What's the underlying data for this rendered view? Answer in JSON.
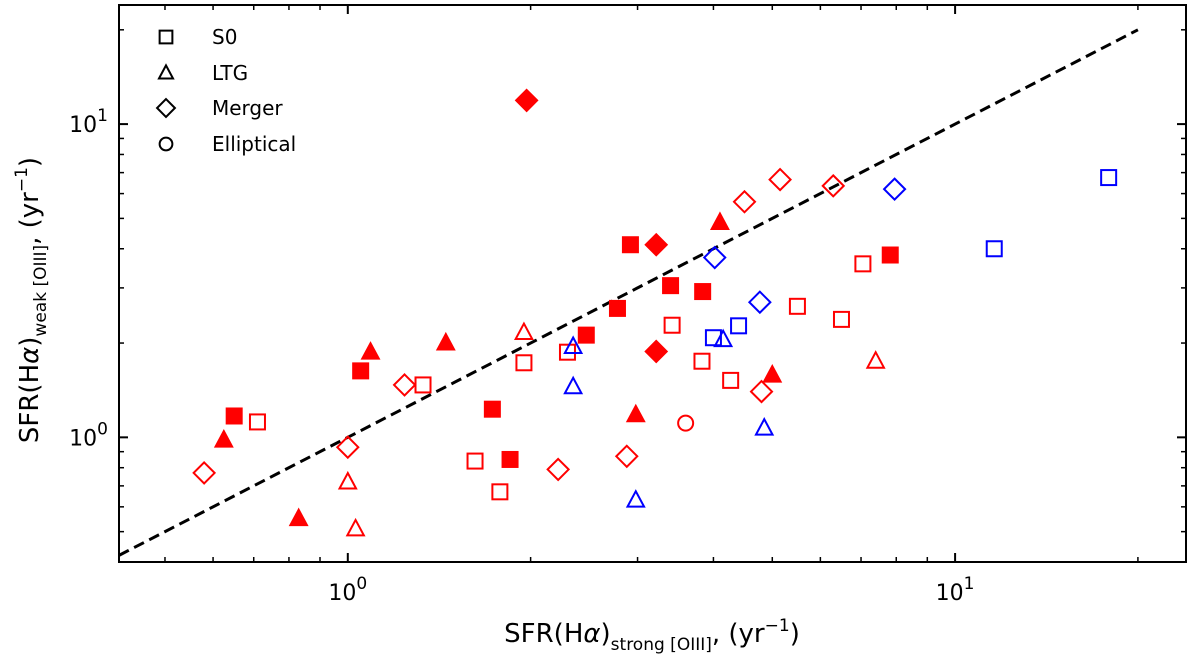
{
  "chart_data": {
    "type": "scatter",
    "scale": "log-log",
    "xlim": [
      0.42,
      24
    ],
    "ylim": [
      0.4,
      24
    ],
    "xlabel": {
      "main": "SFR(H",
      "greek": "α",
      "sub": "strong [OIII]",
      "unit": ", (yr",
      "exp": "−1",
      "close": ")"
    },
    "ylabel": {
      "main": "SFR(H",
      "greek": "α",
      "sub": "weak [OIII]",
      "unit": ", (yr",
      "exp": "−1",
      "close": ")"
    },
    "xticks": [
      {
        "value": 1,
        "base": "10",
        "exp": "0"
      },
      {
        "value": 10,
        "base": "10",
        "exp": "1"
      }
    ],
    "yticks": [
      {
        "value": 1,
        "base": "10",
        "exp": "0"
      },
      {
        "value": 10,
        "base": "10",
        "exp": "1"
      }
    ],
    "reference_line": {
      "style": "dashed",
      "color": "#000000",
      "x": [
        0.42,
        20
      ],
      "y": [
        0.42,
        20
      ]
    },
    "legend": {
      "position": "top-left",
      "entries": [
        {
          "marker": "square",
          "label": "S0"
        },
        {
          "marker": "triangle",
          "label": "LTG"
        },
        {
          "marker": "diamond",
          "label": "Merger"
        },
        {
          "marker": "circle",
          "label": "Elliptical"
        }
      ]
    },
    "colors": {
      "red": "#ff0000",
      "blue": "#0000ff",
      "black": "#000000"
    },
    "points": [
      {
        "x": 0.65,
        "y": 1.17,
        "marker": "square",
        "color": "red",
        "filled": true
      },
      {
        "x": 1.05,
        "y": 1.63,
        "marker": "square",
        "color": "red",
        "filled": true
      },
      {
        "x": 1.73,
        "y": 1.23,
        "marker": "square",
        "color": "red",
        "filled": true
      },
      {
        "x": 1.85,
        "y": 0.85,
        "marker": "square",
        "color": "red",
        "filled": true
      },
      {
        "x": 2.47,
        "y": 2.12,
        "marker": "square",
        "color": "red",
        "filled": true
      },
      {
        "x": 2.78,
        "y": 2.58,
        "marker": "square",
        "color": "red",
        "filled": true
      },
      {
        "x": 2.92,
        "y": 4.12,
        "marker": "square",
        "color": "red",
        "filled": true
      },
      {
        "x": 3.4,
        "y": 3.05,
        "marker": "square",
        "color": "red",
        "filled": true
      },
      {
        "x": 3.84,
        "y": 2.92,
        "marker": "square",
        "color": "red",
        "filled": true
      },
      {
        "x": 7.82,
        "y": 3.82,
        "marker": "square",
        "color": "red",
        "filled": true
      },
      {
        "x": 0.71,
        "y": 1.12,
        "marker": "square",
        "color": "red",
        "filled": false
      },
      {
        "x": 1.33,
        "y": 1.47,
        "marker": "square",
        "color": "red",
        "filled": false
      },
      {
        "x": 1.62,
        "y": 0.84,
        "marker": "square",
        "color": "red",
        "filled": false
      },
      {
        "x": 1.78,
        "y": 0.67,
        "marker": "square",
        "color": "red",
        "filled": false
      },
      {
        "x": 1.95,
        "y": 1.73,
        "marker": "square",
        "color": "red",
        "filled": false
      },
      {
        "x": 2.3,
        "y": 1.87,
        "marker": "square",
        "color": "red",
        "filled": false
      },
      {
        "x": 3.42,
        "y": 2.28,
        "marker": "square",
        "color": "red",
        "filled": false
      },
      {
        "x": 3.83,
        "y": 1.75,
        "marker": "square",
        "color": "red",
        "filled": false
      },
      {
        "x": 4.27,
        "y": 1.52,
        "marker": "square",
        "color": "red",
        "filled": false
      },
      {
        "x": 5.5,
        "y": 2.62,
        "marker": "square",
        "color": "red",
        "filled": false
      },
      {
        "x": 6.5,
        "y": 2.38,
        "marker": "square",
        "color": "red",
        "filled": false
      },
      {
        "x": 7.05,
        "y": 3.58,
        "marker": "square",
        "color": "red",
        "filled": false
      },
      {
        "x": 4.0,
        "y": 2.08,
        "marker": "square",
        "color": "blue",
        "filled": false
      },
      {
        "x": 4.4,
        "y": 2.27,
        "marker": "square",
        "color": "blue",
        "filled": false
      },
      {
        "x": 11.6,
        "y": 4.0,
        "marker": "square",
        "color": "blue",
        "filled": false
      },
      {
        "x": 17.9,
        "y": 6.75,
        "marker": "square",
        "color": "blue",
        "filled": false
      },
      {
        "x": 0.625,
        "y": 0.98,
        "marker": "triangle",
        "color": "red",
        "filled": true
      },
      {
        "x": 0.83,
        "y": 0.55,
        "marker": "triangle",
        "color": "red",
        "filled": true
      },
      {
        "x": 1.09,
        "y": 1.87,
        "marker": "triangle",
        "color": "red",
        "filled": true
      },
      {
        "x": 1.45,
        "y": 2.0,
        "marker": "triangle",
        "color": "red",
        "filled": true
      },
      {
        "x": 2.98,
        "y": 1.18,
        "marker": "triangle",
        "color": "red",
        "filled": true
      },
      {
        "x": 4.1,
        "y": 4.85,
        "marker": "triangle",
        "color": "red",
        "filled": true
      },
      {
        "x": 5.0,
        "y": 1.58,
        "marker": "triangle",
        "color": "red",
        "filled": true
      },
      {
        "x": 1.0,
        "y": 0.72,
        "marker": "triangle",
        "color": "red",
        "filled": false
      },
      {
        "x": 1.03,
        "y": 0.51,
        "marker": "triangle",
        "color": "red",
        "filled": false
      },
      {
        "x": 1.95,
        "y": 2.16,
        "marker": "triangle",
        "color": "red",
        "filled": false
      },
      {
        "x": 7.4,
        "y": 1.75,
        "marker": "triangle",
        "color": "red",
        "filled": false
      },
      {
        "x": 2.35,
        "y": 1.95,
        "marker": "triangle",
        "color": "blue",
        "filled": false
      },
      {
        "x": 2.35,
        "y": 1.45,
        "marker": "triangle",
        "color": "blue",
        "filled": false
      },
      {
        "x": 2.98,
        "y": 0.63,
        "marker": "triangle",
        "color": "blue",
        "filled": false
      },
      {
        "x": 4.15,
        "y": 2.05,
        "marker": "triangle",
        "color": "blue",
        "filled": false
      },
      {
        "x": 4.85,
        "y": 1.07,
        "marker": "triangle",
        "color": "blue",
        "filled": false
      },
      {
        "x": 1.97,
        "y": 11.9,
        "marker": "diamond",
        "color": "red",
        "filled": true
      },
      {
        "x": 3.22,
        "y": 4.12,
        "marker": "diamond",
        "color": "red",
        "filled": true
      },
      {
        "x": 3.22,
        "y": 1.88,
        "marker": "diamond",
        "color": "red",
        "filled": true
      },
      {
        "x": 0.58,
        "y": 0.77,
        "marker": "diamond",
        "color": "red",
        "filled": false
      },
      {
        "x": 1.0,
        "y": 0.93,
        "marker": "diamond",
        "color": "red",
        "filled": false
      },
      {
        "x": 1.24,
        "y": 1.47,
        "marker": "diamond",
        "color": "red",
        "filled": false
      },
      {
        "x": 2.22,
        "y": 0.79,
        "marker": "diamond",
        "color": "red",
        "filled": false
      },
      {
        "x": 2.88,
        "y": 0.87,
        "marker": "diamond",
        "color": "red",
        "filled": false
      },
      {
        "x": 4.5,
        "y": 5.65,
        "marker": "diamond",
        "color": "red",
        "filled": false
      },
      {
        "x": 4.8,
        "y": 1.4,
        "marker": "diamond",
        "color": "red",
        "filled": false
      },
      {
        "x": 5.15,
        "y": 6.65,
        "marker": "diamond",
        "color": "red",
        "filled": false
      },
      {
        "x": 6.3,
        "y": 6.35,
        "marker": "diamond",
        "color": "red",
        "filled": false
      },
      {
        "x": 4.02,
        "y": 3.75,
        "marker": "diamond",
        "color": "blue",
        "filled": false
      },
      {
        "x": 4.77,
        "y": 2.7,
        "marker": "diamond",
        "color": "blue",
        "filled": false
      },
      {
        "x": 7.95,
        "y": 6.2,
        "marker": "diamond",
        "color": "blue",
        "filled": false
      },
      {
        "x": 3.6,
        "y": 1.11,
        "marker": "circle",
        "color": "red",
        "filled": false
      }
    ]
  }
}
